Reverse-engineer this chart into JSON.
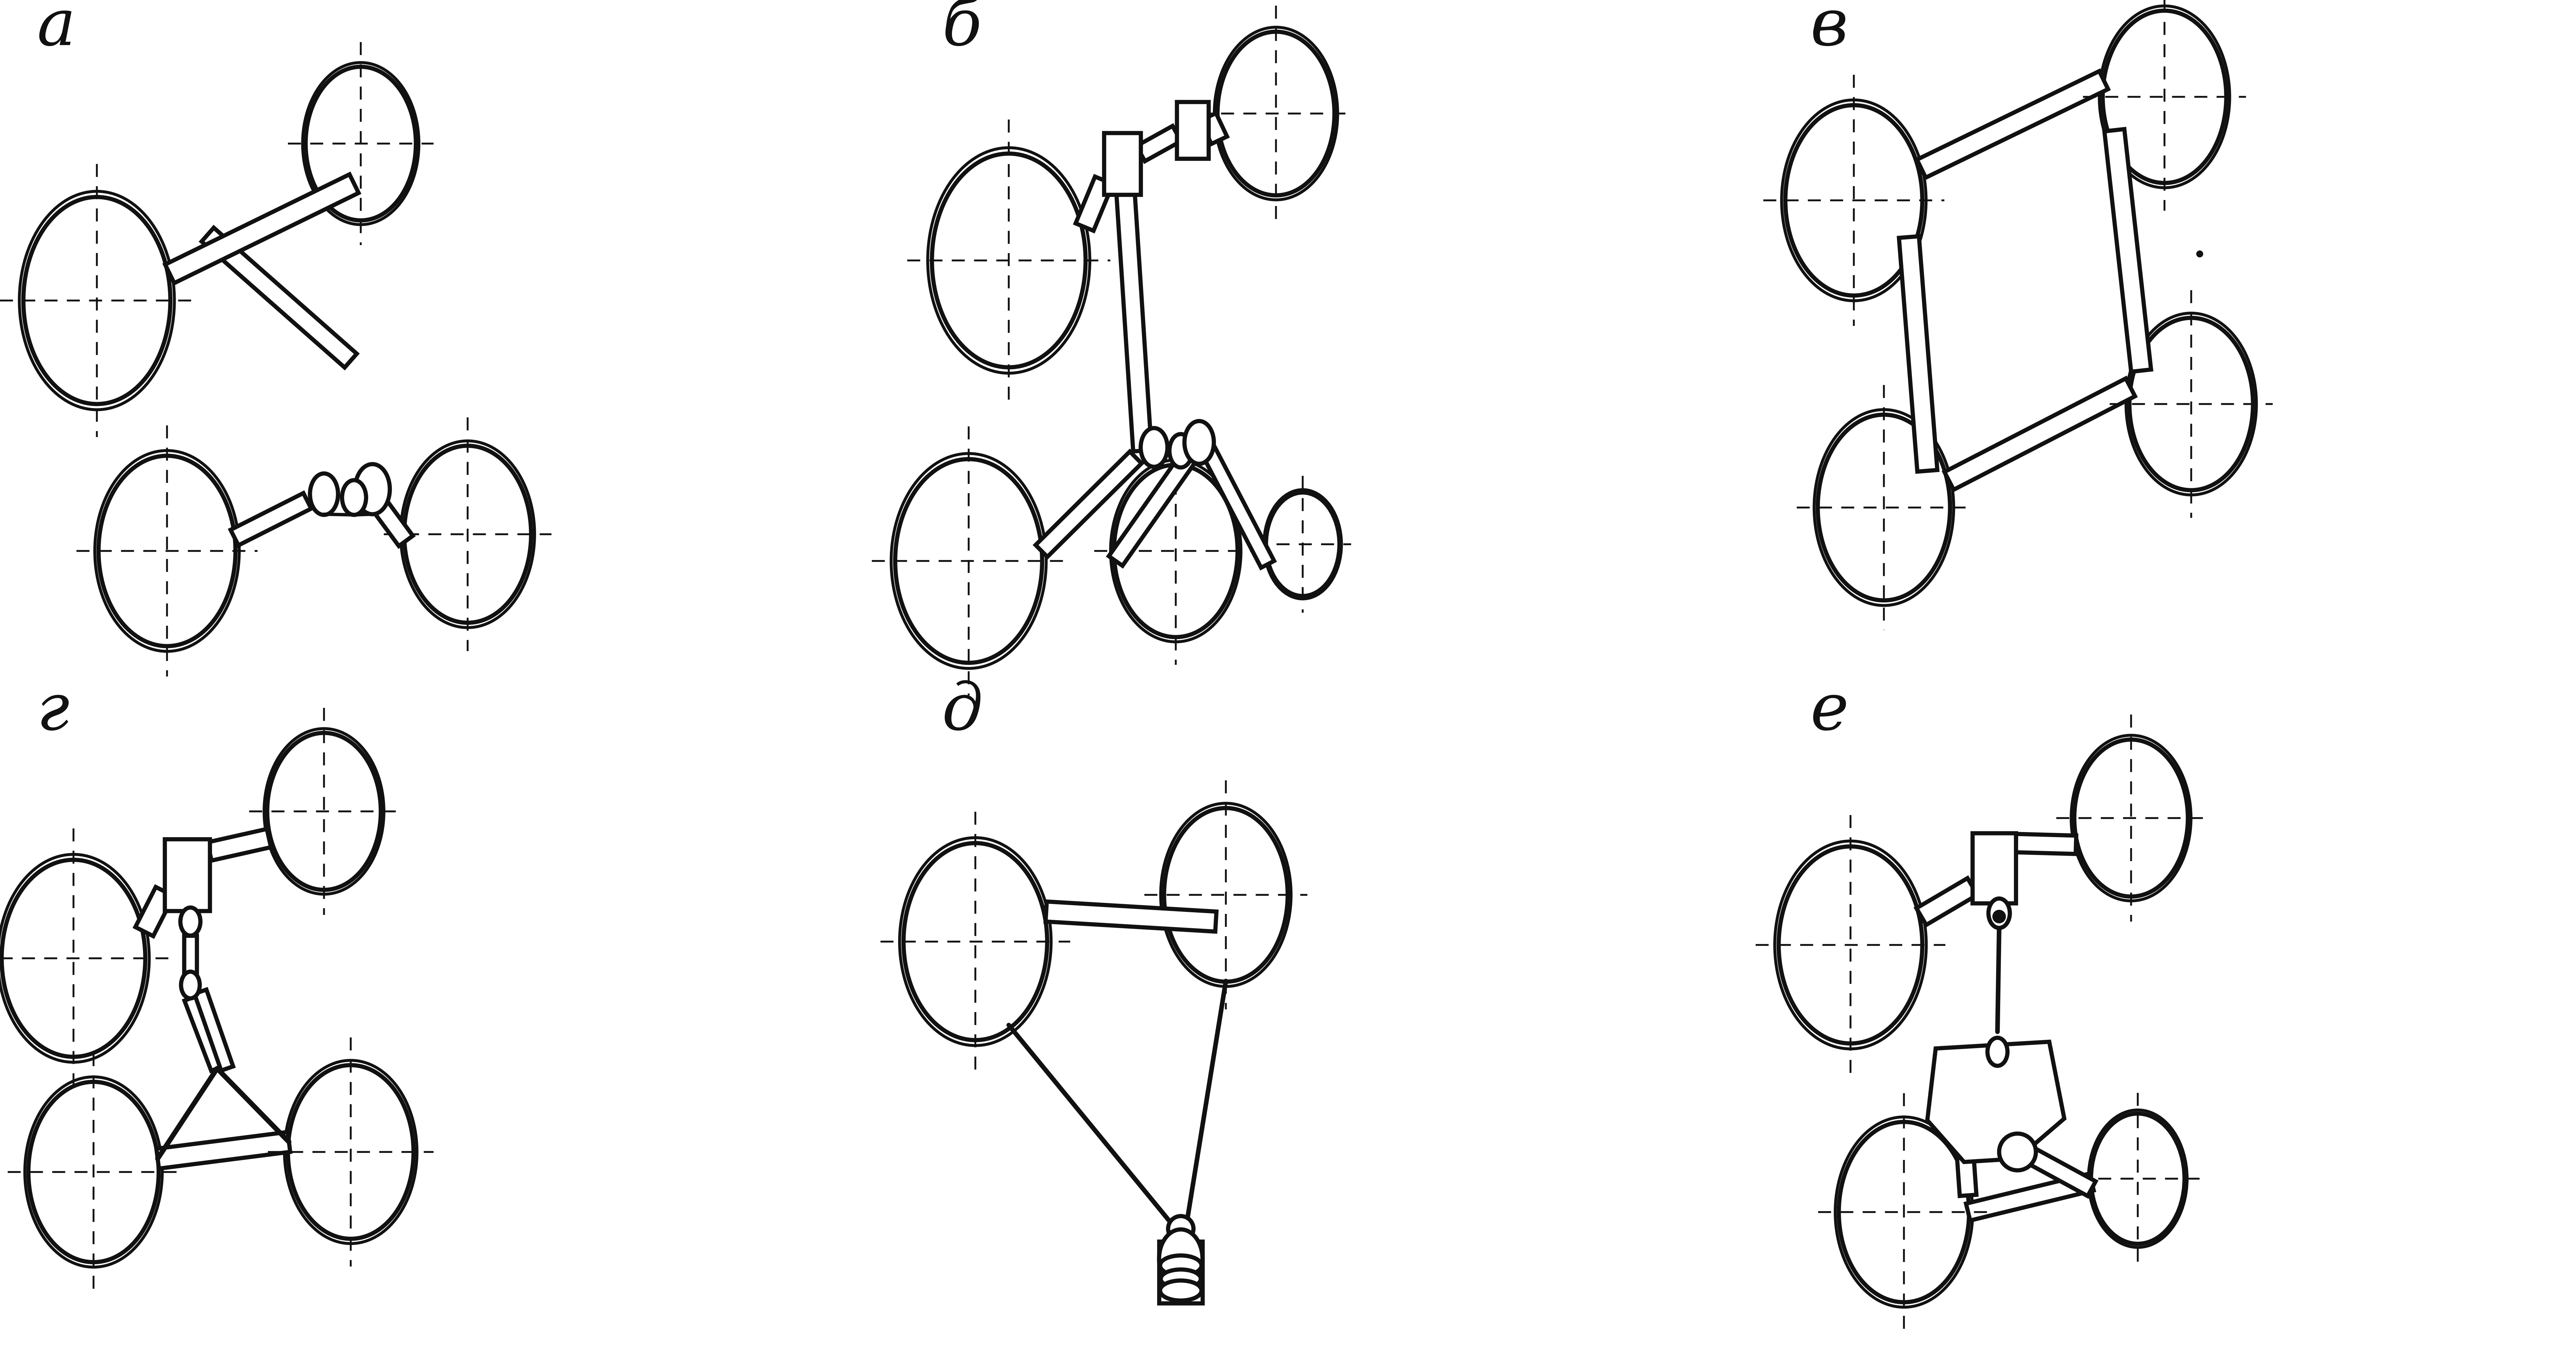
{
  "bg_color": "#ffffff",
  "line_color": "#111111",
  "figsize": [
    77.12,
    41.0
  ],
  "dpi": 100,
  "labels": {
    "a": [
      110,
      135,
      "а"
    ],
    "b": [
      2820,
      135,
      "б"
    ],
    "c": [
      5420,
      135,
      "в"
    ],
    "g": [
      110,
      2185,
      "г"
    ],
    "d": [
      2820,
      2185,
      "д"
    ],
    "e": [
      5420,
      2185,
      "е"
    ]
  },
  "label_fontsize": 140
}
